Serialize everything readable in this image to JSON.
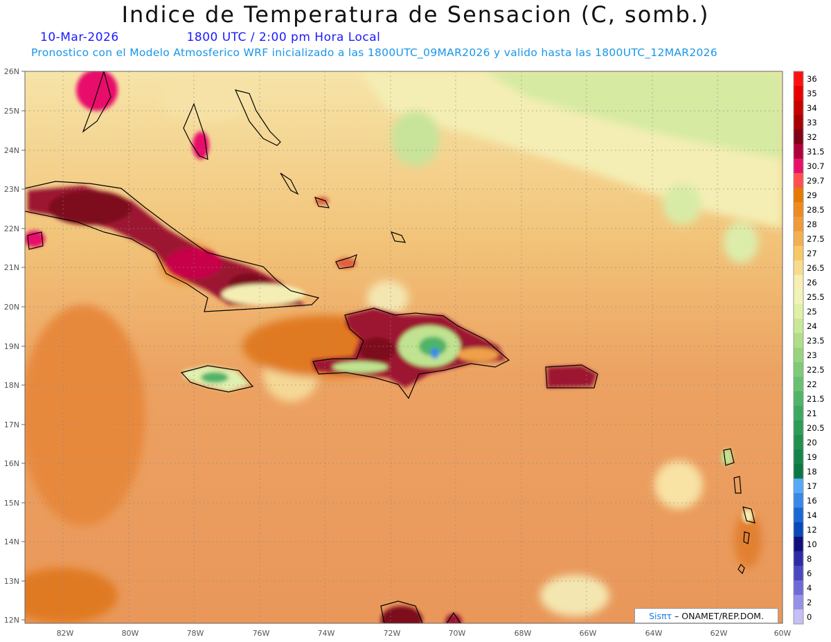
{
  "title": "Indice de Temperatura de Sensacion (C, somb.)",
  "date": "10-Mar-2026",
  "time": "1800 UTC / 2:00 pm Hora Local",
  "forecast": "Pronostico con el Modelo Atmosferico WRF inicializado a las 1800UTC_09MAR2026 y valido hasta las  1800UTC_12MAR2026",
  "lat_labels": [
    "26N",
    "25N",
    "24N",
    "23N",
    "22N",
    "21N",
    "20N",
    "19N",
    "18N",
    "17N",
    "16N",
    "15N",
    "14N",
    "13N",
    "12N"
  ],
  "lon_labels": [
    "82W",
    "80W",
    "78W",
    "76W",
    "74W",
    "72W",
    "70W",
    "68W",
    "66W",
    "64W",
    "62W",
    "60W"
  ],
  "colorbar": {
    "labels": [
      "36",
      "35",
      "34",
      "33",
      "32",
      "31.5",
      "30.7",
      "29.7",
      "29",
      "28.5",
      "28",
      "27.5",
      "27",
      "26.5",
      "26",
      "25.5",
      "25",
      "24",
      "23.5",
      "23",
      "22.5",
      "22",
      "21.5",
      "21",
      "20.5",
      "20",
      "19",
      "18",
      "17",
      "16",
      "14",
      "12",
      "10",
      "8",
      "6",
      "4",
      "2",
      "0"
    ],
    "colors": [
      "#ff1010",
      "#e80000",
      "#c80000",
      "#a80000",
      "#820016",
      "#b0003a",
      "#e8106a",
      "#ff5050",
      "#e67a00",
      "#f08a20",
      "#f09a3a",
      "#f4b050",
      "#f8c868",
      "#f8dc8e",
      "#f8eeb4",
      "#f0f4b6",
      "#e0f0a8",
      "#c8e898",
      "#b0de88",
      "#98d480",
      "#80ca78",
      "#68c070",
      "#50b468",
      "#3ca860",
      "#2c9c58",
      "#209050",
      "#14844a",
      "#0a7842",
      "#58a8f8",
      "#3888e8",
      "#1868d8",
      "#0848b8",
      "#10107a",
      "#2c2ca8",
      "#4a48c0",
      "#6e6ad8",
      "#9690e8",
      "#c4c0f4"
    ]
  },
  "credit": {
    "brand": "Sisπτ",
    "text": "– ONAMET/REP.DOM."
  }
}
